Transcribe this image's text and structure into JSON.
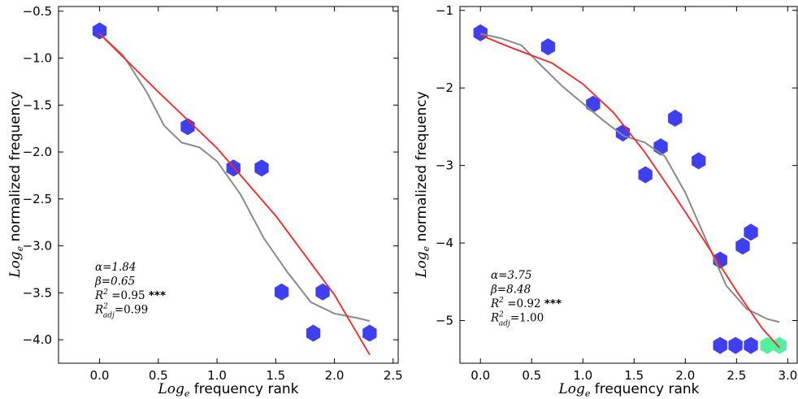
{
  "colors": {
    "hex_blue": "#3f3ff0",
    "hex_green": "#52f0a0",
    "fit_line": "#ff2020",
    "smooth_line": "#8a8a8a"
  },
  "chart_data": [
    {
      "type": "scatter",
      "xlabel_sub": "e",
      "xlabel_prefix": "Log",
      "xlabel_rest": " frequency rank",
      "ylabel_prefix": "Log",
      "ylabel_sub": "e",
      "ylabel_rest": " normalized frequency",
      "xlim": [
        -0.35,
        2.55
      ],
      "ylim": [
        -4.25,
        -0.45
      ],
      "xticks": [
        "0.0",
        "0.5",
        "1.0",
        "1.5",
        "2.0",
        "2.5"
      ],
      "xtick_values": [
        0,
        0.5,
        1.0,
        1.5,
        2.0,
        2.5
      ],
      "yticks": [
        "−0.5",
        "−1.0",
        "−1.5",
        "−2.0",
        "−2.5",
        "−3.0",
        "−3.5",
        "−4.0"
      ],
      "ytick_values": [
        -0.5,
        -1.0,
        -1.5,
        -2.0,
        -2.5,
        -3.0,
        -3.5,
        -4.0
      ],
      "points": [
        {
          "x": 0.0,
          "y": -0.71,
          "color": "blue"
        },
        {
          "x": 0.75,
          "y": -1.73,
          "color": "blue"
        },
        {
          "x": 1.14,
          "y": -2.17,
          "color": "blue"
        },
        {
          "x": 1.38,
          "y": -2.17,
          "color": "blue"
        },
        {
          "x": 1.55,
          "y": -3.49,
          "color": "blue"
        },
        {
          "x": 1.82,
          "y": -3.93,
          "color": "blue"
        },
        {
          "x": 1.9,
          "y": -3.49,
          "color": "blue"
        },
        {
          "x": 2.3,
          "y": -3.93,
          "color": "blue"
        }
      ],
      "fit_line": [
        [
          0.0,
          -0.74
        ],
        [
          0.5,
          -1.36
        ],
        [
          1.0,
          -1.96
        ],
        [
          1.5,
          -2.68
        ],
        [
          2.0,
          -3.52
        ],
        [
          2.3,
          -4.16
        ]
      ],
      "smooth_line": [
        [
          0.0,
          -0.74
        ],
        [
          0.2,
          -0.97
        ],
        [
          0.4,
          -1.36
        ],
        [
          0.55,
          -1.72
        ],
        [
          0.7,
          -1.9
        ],
        [
          0.85,
          -1.95
        ],
        [
          1.0,
          -2.1
        ],
        [
          1.2,
          -2.45
        ],
        [
          1.4,
          -2.92
        ],
        [
          1.6,
          -3.28
        ],
        [
          1.8,
          -3.6
        ],
        [
          2.0,
          -3.72
        ],
        [
          2.2,
          -3.77
        ],
        [
          2.3,
          -3.8
        ]
      ],
      "annotation": {
        "alpha": "α=1.84",
        "beta": "β=0.65",
        "r2_pre": "R",
        "r2_sup": "2",
        "r2_val": " =0.95 ",
        "r2_sig": "***",
        "r2adj_pre": "R",
        "r2adj_sup": "2",
        "r2adj_sub": "adj",
        "r2adj_val": "=0.99"
      }
    },
    {
      "type": "scatter",
      "xlabel_sub": "e",
      "xlabel_prefix": "Log",
      "xlabel_rest": " frequency rank",
      "ylabel_prefix": "Log",
      "ylabel_sub": "e",
      "ylabel_rest": " normalized frequency",
      "xlim": [
        -0.2,
        3.1
      ],
      "ylim": [
        -5.55,
        -0.95
      ],
      "xticks": [
        "0.0",
        "0.5",
        "1.0",
        "1.5",
        "2.0",
        "2.5",
        "3.0"
      ],
      "xtick_values": [
        0,
        0.5,
        1.0,
        1.5,
        2.0,
        2.5,
        3.0
      ],
      "yticks": [
        "−1",
        "−2",
        "−3",
        "−4",
        "−5"
      ],
      "ytick_values": [
        -1,
        -2,
        -3,
        -4,
        -5
      ],
      "points": [
        {
          "x": 0.0,
          "y": -1.29,
          "color": "blue"
        },
        {
          "x": 0.66,
          "y": -1.47,
          "color": "blue"
        },
        {
          "x": 1.1,
          "y": -2.21,
          "color": "blue"
        },
        {
          "x": 1.39,
          "y": -2.58,
          "color": "blue"
        },
        {
          "x": 1.61,
          "y": -3.12,
          "color": "blue"
        },
        {
          "x": 1.76,
          "y": -2.76,
          "color": "blue"
        },
        {
          "x": 1.9,
          "y": -2.39,
          "color": "blue"
        },
        {
          "x": 2.13,
          "y": -2.94,
          "color": "blue"
        },
        {
          "x": 2.34,
          "y": -4.22,
          "color": "blue"
        },
        {
          "x": 2.56,
          "y": -4.04,
          "color": "blue"
        },
        {
          "x": 2.64,
          "y": -3.86,
          "color": "blue"
        },
        {
          "x": 2.34,
          "y": -5.32,
          "color": "blue"
        },
        {
          "x": 2.49,
          "y": -5.32,
          "color": "blue"
        },
        {
          "x": 2.64,
          "y": -5.32,
          "color": "blue"
        },
        {
          "x": 2.8,
          "y": -5.32,
          "color": "green"
        },
        {
          "x": 2.92,
          "y": -5.32,
          "color": "green"
        }
      ],
      "fit_line": [
        [
          0.0,
          -1.32
        ],
        [
          0.3,
          -1.48
        ],
        [
          0.7,
          -1.68
        ],
        [
          1.0,
          -1.95
        ],
        [
          1.3,
          -2.32
        ],
        [
          1.6,
          -2.82
        ],
        [
          1.9,
          -3.4
        ],
        [
          2.2,
          -4.0
        ],
        [
          2.5,
          -4.62
        ],
        [
          2.75,
          -5.1
        ],
        [
          2.92,
          -5.35
        ]
      ],
      "smooth_line": [
        [
          0.0,
          -1.3
        ],
        [
          0.2,
          -1.36
        ],
        [
          0.4,
          -1.45
        ],
        [
          0.6,
          -1.72
        ],
        [
          0.8,
          -1.98
        ],
        [
          1.0,
          -2.2
        ],
        [
          1.2,
          -2.42
        ],
        [
          1.4,
          -2.62
        ],
        [
          1.6,
          -2.7
        ],
        [
          1.8,
          -2.88
        ],
        [
          2.0,
          -3.35
        ],
        [
          2.2,
          -3.95
        ],
        [
          2.4,
          -4.55
        ],
        [
          2.6,
          -4.85
        ],
        [
          2.8,
          -4.98
        ],
        [
          2.92,
          -5.02
        ]
      ],
      "annotation": {
        "alpha": "α=3.75",
        "beta": "β=8.48",
        "r2_pre": "R",
        "r2_sup": "2",
        "r2_val": " =0.92 ",
        "r2_sig": "***",
        "r2adj_pre": "R",
        "r2adj_sup": "2",
        "r2adj_sub": "adj",
        "r2adj_val": "=1.00"
      }
    }
  ]
}
